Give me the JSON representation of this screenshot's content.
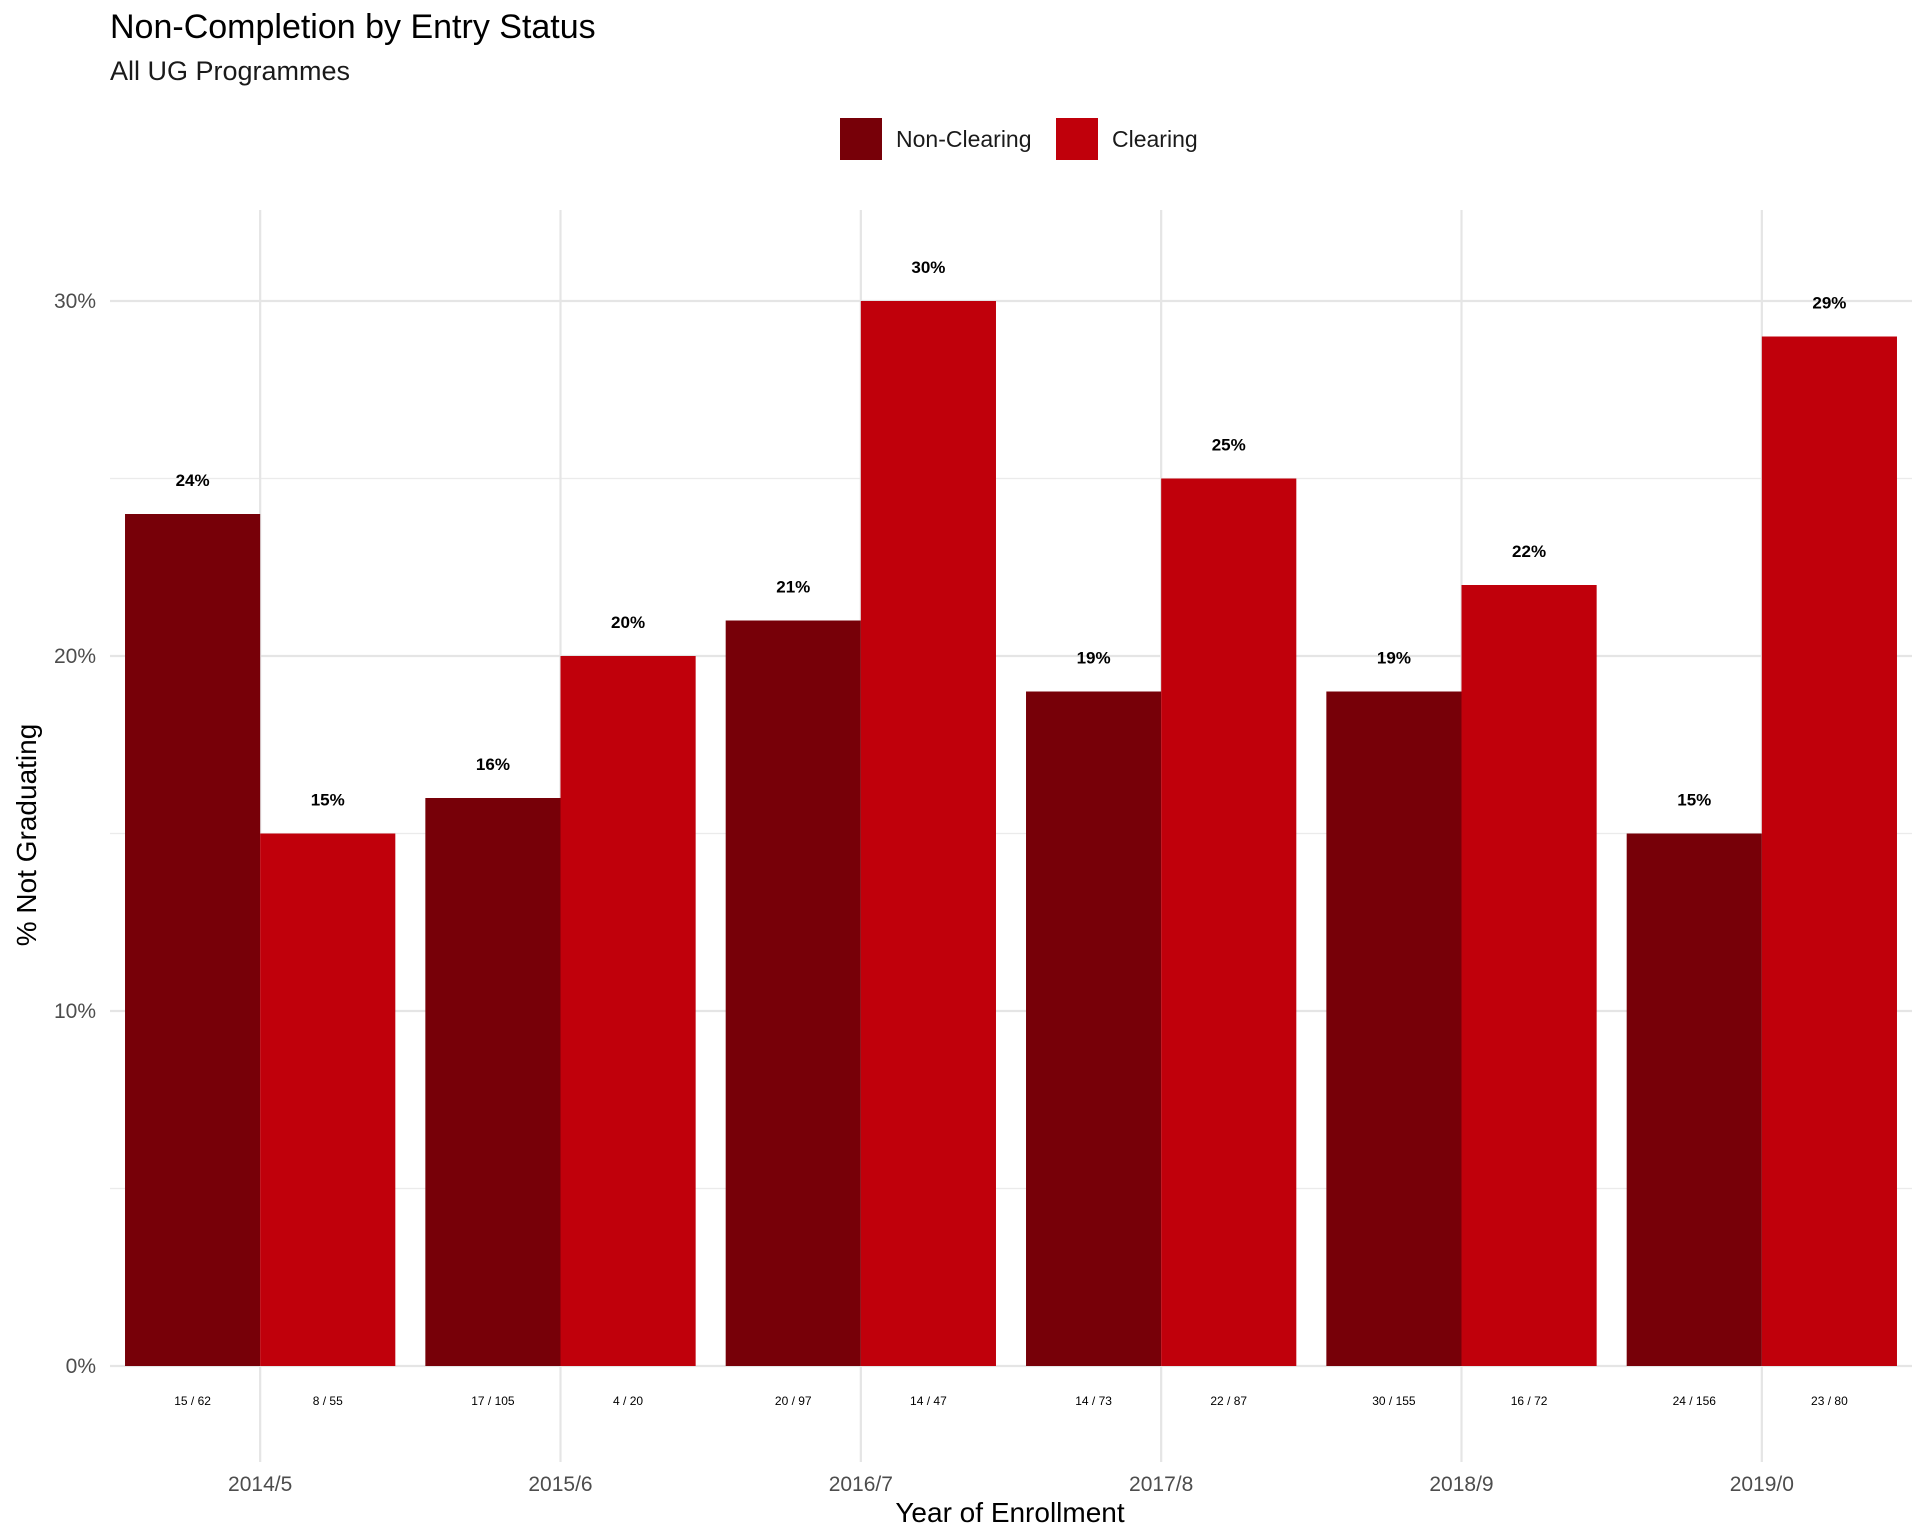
{
  "chart_data": {
    "type": "bar",
    "title": "Non-Completion by Entry Status",
    "subtitle": "All UG Programmes",
    "xlabel": "Year of Enrollment",
    "ylabel": "% Not Graduating",
    "categories": [
      "2014/5",
      "2015/6",
      "2016/7",
      "2017/8",
      "2018/9",
      "2019/0"
    ],
    "ylim": [
      0,
      0.32
    ],
    "yticks": [
      0,
      0.1,
      0.2,
      0.3
    ],
    "ytick_labels": [
      "0%",
      "10%",
      "20%",
      "30%"
    ],
    "grid": true,
    "legend_position": "top",
    "series": [
      {
        "name": "Non-Clearing",
        "color": "#770008",
        "values": [
          0.24,
          0.16,
          0.21,
          0.19,
          0.19,
          0.15
        ],
        "value_labels": [
          "24%",
          "16%",
          "21%",
          "19%",
          "19%",
          "15%"
        ],
        "count_labels": [
          "15 / 62",
          "17 / 105",
          "20 / 97",
          "14 / 73",
          "30 / 155",
          "24 / 156"
        ]
      },
      {
        "name": "Clearing",
        "color": "#C0000B",
        "values": [
          0.15,
          0.2,
          0.3,
          0.25,
          0.22,
          0.29
        ],
        "value_labels": [
          "15%",
          "20%",
          "30%",
          "25%",
          "22%",
          "29%"
        ],
        "count_labels": [
          "8 / 55",
          "4 / 20",
          "14 / 47",
          "22 / 87",
          "16 / 72",
          "23 / 80"
        ]
      }
    ]
  }
}
